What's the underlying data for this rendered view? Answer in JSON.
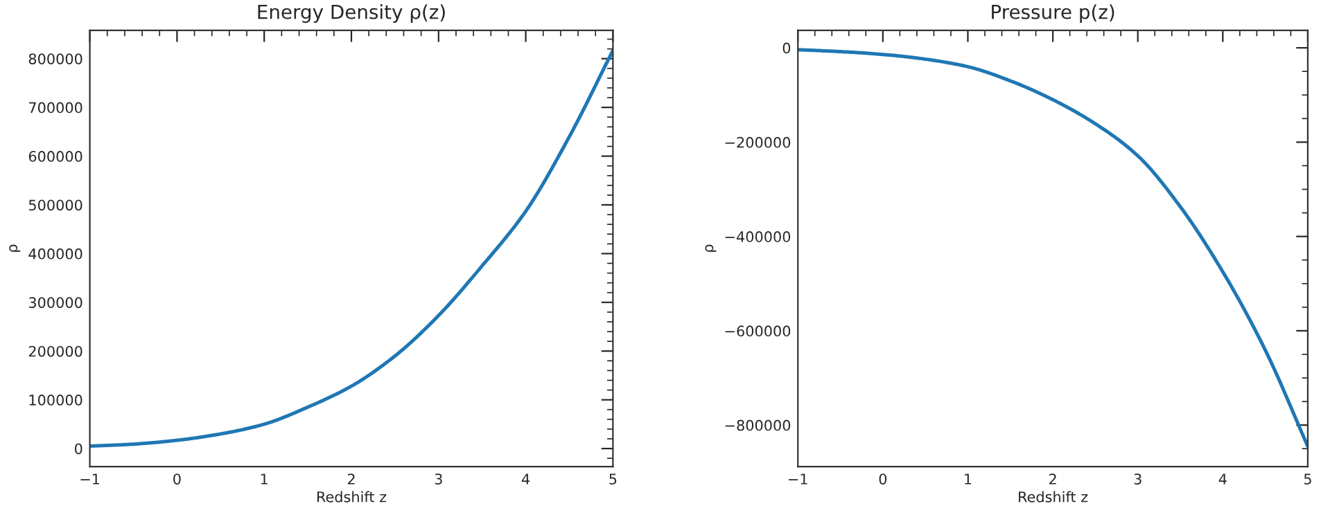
{
  "chart_data": [
    {
      "type": "line",
      "title": "Energy Density ρ(z)",
      "xlabel": "Redshift z",
      "ylabel": "ρ",
      "x": [
        -1,
        -0.5,
        0,
        0.5,
        1,
        1.5,
        2,
        2.5,
        3,
        3.5,
        4,
        4.5,
        5
      ],
      "series": [
        {
          "color": "#1f77b4",
          "values": [
            5000,
            9000,
            17000,
            30000,
            50000,
            85000,
            128000,
            190000,
            273000,
            375000,
            487000,
            640000,
            817000
          ]
        }
      ],
      "xlim": [
        -1,
        5
      ],
      "xticks": [
        {
          "value": -1,
          "label": "−1"
        },
        0,
        1,
        2,
        3,
        4,
        5
      ],
      "ylim": [
        -37000,
        858000
      ],
      "yticks": [
        0,
        100000,
        200000,
        300000,
        400000,
        500000,
        600000,
        700000,
        800000
      ],
      "grid": false,
      "legend": false,
      "line_style": "solid",
      "marker": "none"
    },
    {
      "type": "line",
      "title": "Pressure p(z)",
      "xlabel": "Redshift z",
      "ylabel": "ρ",
      "x": [
        -1,
        -0.5,
        0,
        0.5,
        1,
        1.5,
        2,
        2.5,
        3,
        3.5,
        4,
        4.5,
        5
      ],
      "series": [
        {
          "color": "#1f77b4",
          "values": [
            -4000,
            -8000,
            -14000,
            -24000,
            -40000,
            -70000,
            -110000,
            -161000,
            -229000,
            -337000,
            -475000,
            -641000,
            -845000
          ]
        }
      ],
      "xlim": [
        -1,
        5
      ],
      "xticks": [
        {
          "value": -1,
          "label": "−1"
        },
        0,
        1,
        2,
        3,
        4,
        5
      ],
      "ylim": [
        -888000,
        37000
      ],
      "yticks": [
        {
          "value": -800000,
          "label": "−800000"
        },
        {
          "value": -600000,
          "label": "−600000"
        },
        {
          "value": -400000,
          "label": "−400000"
        },
        {
          "value": -200000,
          "label": "−200000"
        },
        0
      ],
      "grid": false,
      "legend": false,
      "line_style": "solid",
      "marker": "none"
    }
  ]
}
